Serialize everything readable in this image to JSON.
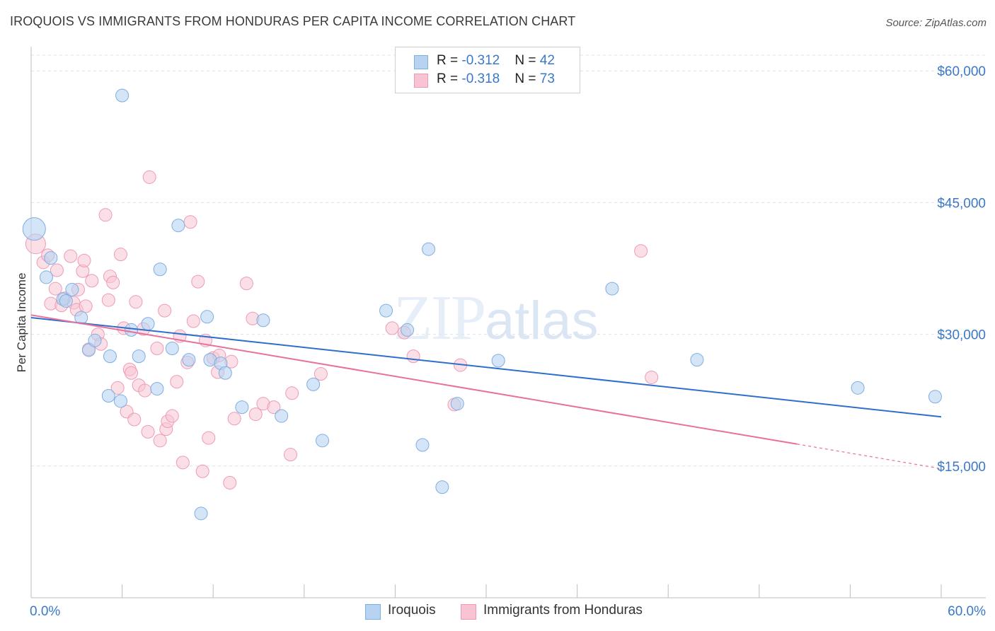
{
  "header": {
    "title": "IROQUOIS VS IMMIGRANTS FROM HONDURAS PER CAPITA INCOME CORRELATION CHART",
    "source": "Source: ZipAtlas.com"
  },
  "watermark": {
    "zip": "ZIP",
    "atlas": "atlas"
  },
  "legend": {
    "rows": [
      {
        "r_label": "R = ",
        "r_value": "-0.312",
        "n_label": "N = ",
        "n_value": "42"
      },
      {
        "r_label": "R = ",
        "r_value": "-0.318",
        "n_label": "N = ",
        "n_value": "73"
      }
    ]
  },
  "colors": {
    "blue_fill": "#b8d3f2",
    "blue_stroke": "#7faee0",
    "blue_line": "#2e6fcc",
    "pink_fill": "#f8c4d3",
    "pink_stroke": "#ee9ab6",
    "pink_line": "#e8719c",
    "axis_label": "#3a78c8",
    "grid": "#e2e2e2"
  },
  "chart_data": {
    "type": "scatter",
    "title": "IROQUOIS VS IMMIGRANTS FROM HONDURAS PER CAPITA INCOME CORRELATION CHART",
    "xlabel": "",
    "ylabel": "Per Capita Income",
    "xlim": [
      0,
      60
    ],
    "ylim": [
      0,
      63000
    ],
    "x_tick_labels": {
      "min": "0.0%",
      "max": "60.0%"
    },
    "y_ticks": [
      15000,
      30000,
      45000,
      60000
    ],
    "y_tick_labels": [
      "$15,000",
      "$30,000",
      "$45,000",
      "$60,000"
    ],
    "grid": true,
    "legend_position": "top-center",
    "series": [
      {
        "name": "Iroquois",
        "color": "#b8d3f2",
        "points": [
          [
            0.2,
            42000
          ],
          [
            1.0,
            36500
          ],
          [
            1.3,
            38700
          ],
          [
            2.1,
            34000
          ],
          [
            2.3,
            33800
          ],
          [
            2.7,
            35100
          ],
          [
            3.3,
            31900
          ],
          [
            3.8,
            28200
          ],
          [
            4.2,
            29300
          ],
          [
            5.1,
            23000
          ],
          [
            5.2,
            27500
          ],
          [
            5.9,
            22400
          ],
          [
            6.0,
            57200
          ],
          [
            6.6,
            30500
          ],
          [
            7.1,
            27500
          ],
          [
            7.7,
            31200
          ],
          [
            8.3,
            23800
          ],
          [
            8.5,
            37400
          ],
          [
            9.3,
            28400
          ],
          [
            9.7,
            42400
          ],
          [
            10.4,
            27100
          ],
          [
            11.2,
            9600
          ],
          [
            11.6,
            32000
          ],
          [
            11.8,
            27100
          ],
          [
            12.5,
            26700
          ],
          [
            12.8,
            25600
          ],
          [
            13.9,
            21700
          ],
          [
            15.3,
            31600
          ],
          [
            16.5,
            20700
          ],
          [
            18.6,
            24300
          ],
          [
            19.2,
            17900
          ],
          [
            23.4,
            32700
          ],
          [
            24.8,
            30500
          ],
          [
            25.8,
            17400
          ],
          [
            26.2,
            39700
          ],
          [
            27.1,
            12600
          ],
          [
            28.1,
            22100
          ],
          [
            30.8,
            27000
          ],
          [
            38.3,
            35200
          ],
          [
            43.9,
            27100
          ],
          [
            54.5,
            23900
          ],
          [
            59.6,
            22900
          ]
        ],
        "trend": {
          "x": [
            0,
            60
          ],
          "y": [
            31900,
            20600
          ]
        }
      },
      {
        "name": "Immigrants from Honduras",
        "color": "#f8c4d3",
        "points": [
          [
            0.3,
            40300
          ],
          [
            0.8,
            38200
          ],
          [
            1.1,
            39000
          ],
          [
            1.3,
            33500
          ],
          [
            1.6,
            35200
          ],
          [
            1.7,
            37300
          ],
          [
            2.0,
            33300
          ],
          [
            2.2,
            34100
          ],
          [
            2.6,
            38900
          ],
          [
            2.8,
            33600
          ],
          [
            3.0,
            32800
          ],
          [
            3.1,
            35100
          ],
          [
            3.4,
            37200
          ],
          [
            3.5,
            38400
          ],
          [
            3.6,
            33200
          ],
          [
            3.8,
            28300
          ],
          [
            4.0,
            36100
          ],
          [
            4.4,
            30000
          ],
          [
            4.6,
            28900
          ],
          [
            4.9,
            43600
          ],
          [
            5.1,
            33900
          ],
          [
            5.2,
            36600
          ],
          [
            5.4,
            35900
          ],
          [
            5.7,
            23900
          ],
          [
            5.9,
            39100
          ],
          [
            6.1,
            30700
          ],
          [
            6.3,
            21200
          ],
          [
            6.5,
            26000
          ],
          [
            6.6,
            25600
          ],
          [
            6.8,
            20300
          ],
          [
            7.1,
            24200
          ],
          [
            7.4,
            30600
          ],
          [
            7.5,
            23600
          ],
          [
            7.7,
            18900
          ],
          [
            7.8,
            47900
          ],
          [
            8.3,
            28400
          ],
          [
            8.5,
            17900
          ],
          [
            8.8,
            32700
          ],
          [
            8.9,
            19200
          ],
          [
            9.0,
            20100
          ],
          [
            9.3,
            20700
          ],
          [
            9.6,
            24600
          ],
          [
            10.0,
            15400
          ],
          [
            10.3,
            26800
          ],
          [
            10.5,
            42800
          ],
          [
            10.7,
            31500
          ],
          [
            11.3,
            14400
          ],
          [
            11.5,
            29300
          ],
          [
            11.7,
            18200
          ],
          [
            12.0,
            27300
          ],
          [
            12.3,
            25700
          ],
          [
            12.4,
            27600
          ],
          [
            13.1,
            13100
          ],
          [
            13.2,
            26900
          ],
          [
            13.4,
            20400
          ],
          [
            14.2,
            35800
          ],
          [
            14.6,
            31800
          ],
          [
            14.8,
            20900
          ],
          [
            15.3,
            22100
          ],
          [
            16.0,
            21700
          ],
          [
            17.1,
            16300
          ],
          [
            17.2,
            23300
          ],
          [
            19.1,
            25500
          ],
          [
            23.8,
            30700
          ],
          [
            24.6,
            30200
          ],
          [
            25.2,
            27500
          ],
          [
            27.9,
            22000
          ],
          [
            28.3,
            26500
          ],
          [
            40.2,
            39500
          ],
          [
            40.9,
            25100
          ],
          [
            11.0,
            36000
          ],
          [
            6.9,
            33700
          ],
          [
            9.8,
            29800
          ]
        ],
        "trend": {
          "x": [
            0,
            50.5
          ],
          "y": [
            32200,
            17500
          ]
        },
        "trend_dashed": {
          "x": [
            50.5,
            60
          ],
          "y": [
            17500,
            14700
          ]
        }
      }
    ]
  },
  "bottom_legend": {
    "items": [
      {
        "label": "Iroquois"
      },
      {
        "label": "Immigrants from Honduras"
      }
    ]
  }
}
